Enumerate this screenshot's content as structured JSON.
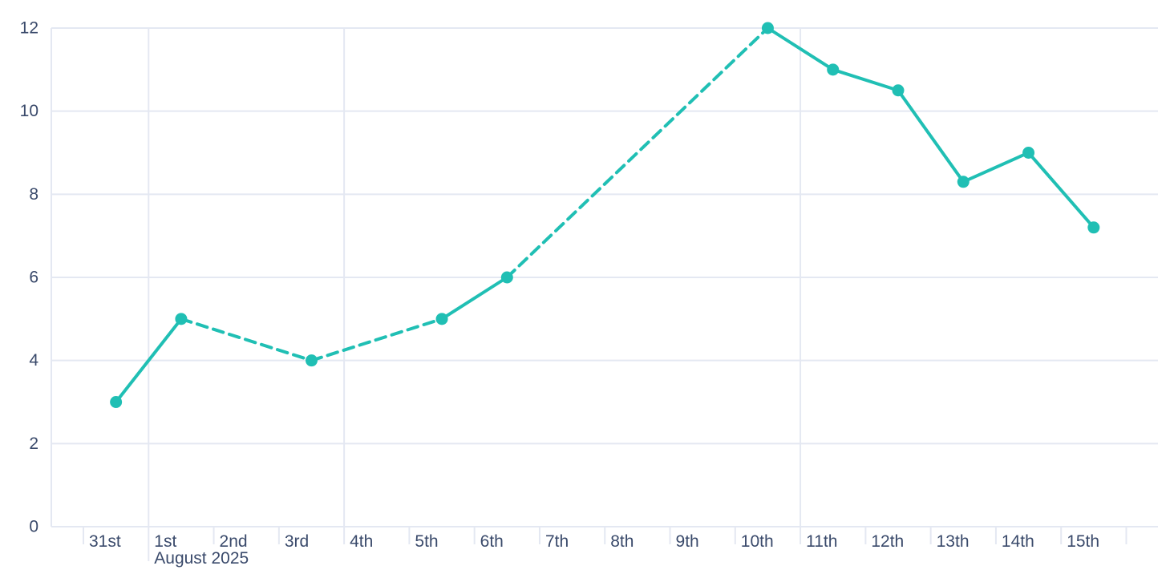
{
  "page": {
    "background": "#ffffff"
  },
  "chart_data": {
    "type": "line",
    "title": "",
    "legend": "none",
    "grid": {
      "horizontal": true,
      "vertical_week_lines": true
    },
    "colors": {
      "line": "#20BFB4",
      "label": "#3A4A6B",
      "grid": "#E4E8F2"
    },
    "x_axis": {
      "tick_labels": [
        "31st",
        "1st",
        "2nd",
        "3rd",
        "4th",
        "5th",
        "6th",
        "7th",
        "8th",
        "9th",
        "10th",
        "11th",
        "12th",
        "13th",
        "14th",
        "15th"
      ],
      "month_label": "August 2025",
      "month_label_slot": 1,
      "week_gridline_slots": [
        1,
        4,
        11
      ]
    },
    "y_axis": {
      "tick_labels": [
        "0",
        "2",
        "4",
        "6",
        "8",
        "10",
        "12"
      ],
      "range": [
        0,
        12
      ]
    },
    "series": [
      {
        "name": "daily-values",
        "points": [
          {
            "date": "31st",
            "slot": 0,
            "value": 3,
            "line_to_next": "solid"
          },
          {
            "date": "1st",
            "slot": 1,
            "value": 5,
            "line_to_next": "dashed"
          },
          {
            "date": "3rd",
            "slot": 3,
            "value": 4,
            "line_to_next": "dashed"
          },
          {
            "date": "5th",
            "slot": 5,
            "value": 5,
            "line_to_next": "solid"
          },
          {
            "date": "6th",
            "slot": 6,
            "value": 6,
            "line_to_next": "dashed"
          },
          {
            "date": "10th",
            "slot": 10,
            "value": 12,
            "line_to_next": "solid"
          },
          {
            "date": "11th",
            "slot": 11,
            "value": 11,
            "line_to_next": "solid"
          },
          {
            "date": "12th",
            "slot": 12,
            "value": 10.5,
            "line_to_next": "solid"
          },
          {
            "date": "13th",
            "slot": 13,
            "value": 8.3,
            "line_to_next": "solid"
          },
          {
            "date": "14th",
            "slot": 14,
            "value": 9,
            "line_to_next": "solid"
          },
          {
            "date": "15th",
            "slot": 15,
            "value": 7.2,
            "line_to_next": "none"
          }
        ]
      }
    ]
  }
}
